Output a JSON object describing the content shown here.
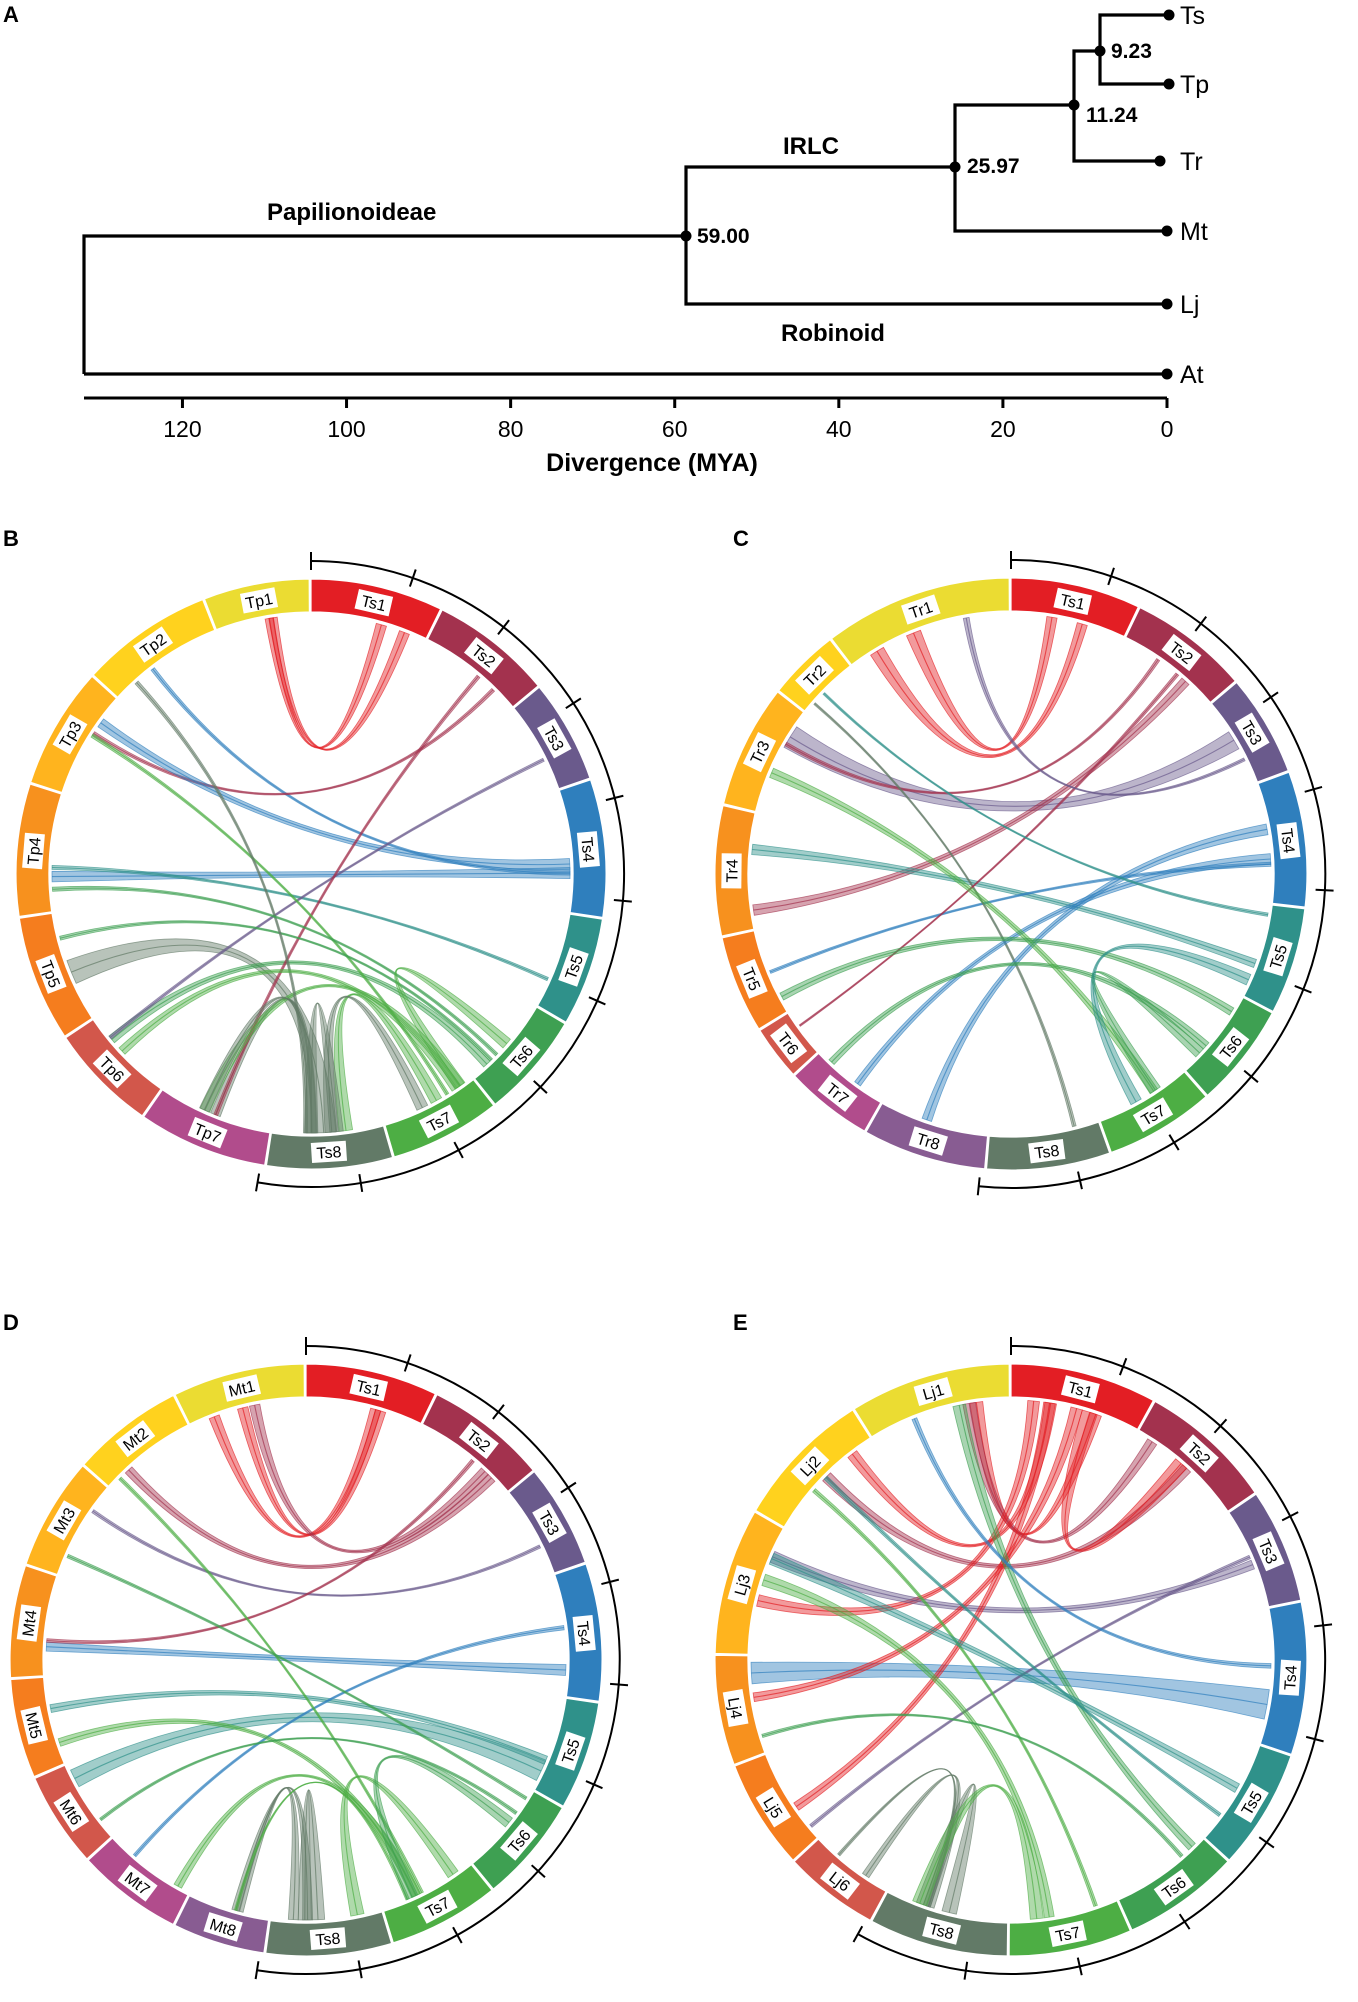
{
  "panel_labels": [
    "A",
    "B",
    "C",
    "D",
    "E"
  ],
  "tree": {
    "species": [
      "Ts",
      "Tp",
      "Tr",
      "Mt",
      "Lj",
      "At"
    ],
    "nodes": [
      {
        "value": "9.23",
        "age": 8
      },
      {
        "value": "11.24",
        "age": 9
      },
      {
        "value": "25.97",
        "age": 25
      },
      {
        "value": "59.00",
        "age": 58
      }
    ],
    "clades": {
      "papilionoideae": "Papilionoideae",
      "irlc": "IRLC",
      "robinoid": "Robinoid"
    },
    "axis": {
      "title": "Divergence (MYA)",
      "ticks": [
        "120",
        "100",
        "80",
        "60",
        "40",
        "20",
        "0"
      ],
      "max": 132
    }
  },
  "circos": [
    {
      "id": "B",
      "left": [
        "Tp1",
        "Tp2",
        "Tp3",
        "Tp4",
        "Tp5",
        "Tp6",
        "Tp7"
      ]
    },
    {
      "id": "C",
      "left": [
        "Tr1",
        "Tr2",
        "Tr3",
        "Tr4",
        "Tr5",
        "Tr6",
        "Tr7",
        "Tr8"
      ]
    },
    {
      "id": "D",
      "left": [
        "Mt1",
        "Mt2",
        "Mt3",
        "Mt4",
        "Mt5",
        "Mt6",
        "Mt7",
        "Mt8"
      ]
    },
    {
      "id": "E",
      "left": [
        "Lj1",
        "Lj2",
        "Lj3",
        "Lj4",
        "Lj5",
        "Lj6"
      ]
    }
  ],
  "ts_chromosomes": [
    "Ts1",
    "Ts2",
    "Ts3",
    "Ts4",
    "Ts5",
    "Ts6",
    "Ts7",
    "Ts8"
  ],
  "colors": {
    "Ts1": "#e31e24",
    "Ts2": "#a3324e",
    "Ts3": "#6a5a8c",
    "Ts4": "#2f7fbd",
    "Ts5": "#2f918a",
    "Ts6": "#3ea052",
    "Ts7": "#4dae44",
    "Ts8": "#627a67",
    "left_palette": [
      "#ebdc32",
      "#ffd21e",
      "#ffb41e",
      "#f7911e",
      "#f57d1e",
      "#d2574b",
      "#b14c8c",
      "#885c92"
    ]
  }
}
